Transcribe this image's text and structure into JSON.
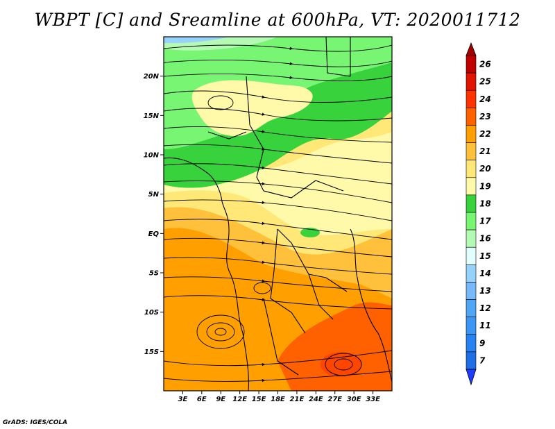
{
  "title": "WBPT [C] and Sreamline at 600hPa, VT: 2020011712",
  "credit": "GrADS: IGES/COLA",
  "map": {
    "lon_range": [
      0,
      36
    ],
    "lat_range": [
      -20,
      25
    ],
    "lat_ticks": [
      {
        "value": 20,
        "label": "20N"
      },
      {
        "value": 15,
        "label": "15N"
      },
      {
        "value": 10,
        "label": "10N"
      },
      {
        "value": 5,
        "label": "5N"
      },
      {
        "value": 0,
        "label": "EQ"
      },
      {
        "value": -5,
        "label": "5S"
      },
      {
        "value": -10,
        "label": "10S"
      },
      {
        "value": -15,
        "label": "15S"
      }
    ],
    "lon_ticks": [
      {
        "value": 3,
        "label": "3E"
      },
      {
        "value": 6,
        "label": "6E"
      },
      {
        "value": 9,
        "label": "9E"
      },
      {
        "value": 12,
        "label": "12E"
      },
      {
        "value": 15,
        "label": "15E"
      },
      {
        "value": 18,
        "label": "18E"
      },
      {
        "value": 21,
        "label": "21E"
      },
      {
        "value": 24,
        "label": "24E"
      },
      {
        "value": 27,
        "label": "27E"
      },
      {
        "value": 30,
        "label": "30E"
      },
      {
        "value": 33,
        "label": "33E"
      }
    ]
  },
  "colorbar": {
    "levels": [
      {
        "label": "7",
        "color": "#1e6ee6"
      },
      {
        "label": "9",
        "color": "#2882f0"
      },
      {
        "label": "11",
        "color": "#3c96f5"
      },
      {
        "label": "12",
        "color": "#50a5f5"
      },
      {
        "label": "13",
        "color": "#78b9fa"
      },
      {
        "label": "14",
        "color": "#96d2fa"
      },
      {
        "label": "15",
        "color": "#e1ffff"
      },
      {
        "label": "16",
        "color": "#b4fab4"
      },
      {
        "label": "17",
        "color": "#78f573"
      },
      {
        "label": "18",
        "color": "#37d23c"
      },
      {
        "label": "19",
        "color": "#fffaaa"
      },
      {
        "label": "20",
        "color": "#ffe878"
      },
      {
        "label": "21",
        "color": "#ffc03c"
      },
      {
        "label": "22",
        "color": "#ffa000"
      },
      {
        "label": "23",
        "color": "#ff6000"
      },
      {
        "label": "24",
        "color": "#ff3200"
      },
      {
        "label": "25",
        "color": "#e11400"
      },
      {
        "label": "26",
        "color": "#c00000"
      }
    ],
    "top_color": "#a50000",
    "bottom_color": "#1e3cff"
  }
}
